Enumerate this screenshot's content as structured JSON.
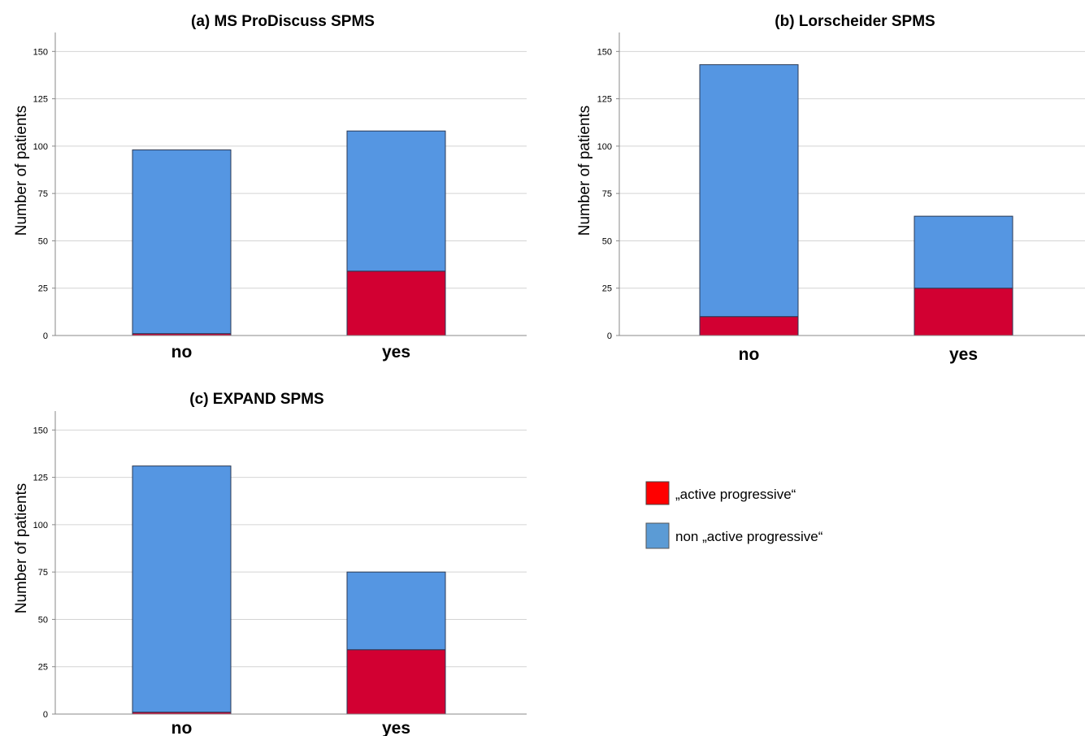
{
  "chart_data": [
    {
      "type": "bar",
      "stacked": true,
      "title": "(a) MS ProDiscuss SPMS",
      "ylabel": "Number of patients",
      "xlabel": "",
      "categories": [
        "no",
        "yes"
      ],
      "ylim": [
        0,
        160
      ],
      "yticks": [
        0,
        25,
        50,
        75,
        100,
        125,
        150
      ],
      "grid": true,
      "series": [
        {
          "name": "„active progressive“",
          "values": [
            1,
            34
          ]
        },
        {
          "name": "non „active progressive“",
          "values": [
            97,
            74
          ]
        }
      ]
    },
    {
      "type": "bar",
      "stacked": true,
      "title": "(b) Lorscheider SPMS",
      "ylabel": "Number of patients",
      "xlabel": "",
      "categories": [
        "no",
        "yes"
      ],
      "ylim": [
        0,
        160
      ],
      "yticks": [
        0,
        25,
        50,
        75,
        100,
        125,
        150
      ],
      "grid": true,
      "series": [
        {
          "name": "„active progressive“",
          "values": [
            10,
            25
          ]
        },
        {
          "name": "non „active progressive“",
          "values": [
            133,
            38
          ]
        }
      ]
    },
    {
      "type": "bar",
      "stacked": true,
      "title": "(c) EXPAND SPMS",
      "ylabel": "Number of patients",
      "xlabel": "",
      "categories": [
        "no",
        "yes"
      ],
      "ylim": [
        0,
        160
      ],
      "yticks": [
        0,
        25,
        50,
        75,
        100,
        125,
        150
      ],
      "grid": true,
      "series": [
        {
          "name": "„active progressive“",
          "values": [
            1,
            34
          ]
        },
        {
          "name": "non „active progressive“",
          "values": [
            130,
            41
          ]
        }
      ]
    }
  ],
  "legend": {
    "items": [
      {
        "label": "„active progressive“",
        "color": "#ff0000"
      },
      {
        "label": "non „active progressive“",
        "color": "#5b9bd5"
      }
    ]
  },
  "colors": {
    "active": "#d20032",
    "non_active": "#5596e2",
    "grid": "#d4d4d4",
    "axis": "#888888"
  }
}
